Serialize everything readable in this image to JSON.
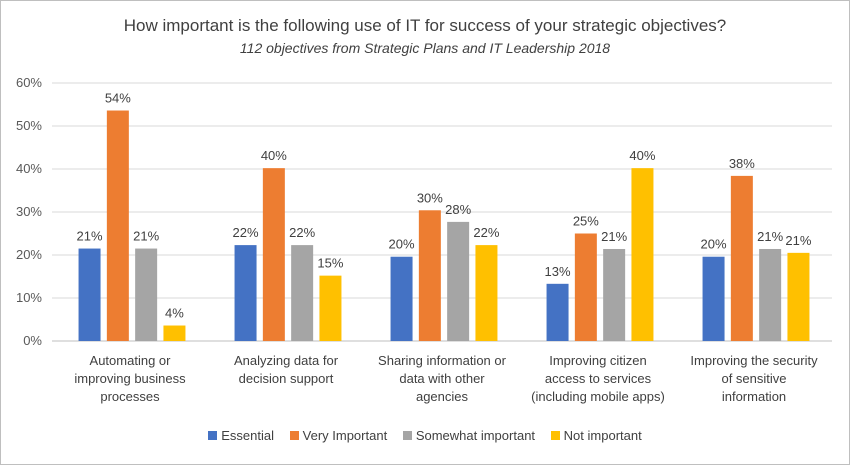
{
  "chart_data": {
    "type": "bar",
    "title": "How important is the following use of IT for success of your strategic objectives?",
    "subtitle": "112 objectives from Strategic Plans and IT Leadership 2018",
    "categories": [
      [
        "Automating or",
        "improving business",
        "processes"
      ],
      [
        "Analyzing data for",
        "decision support"
      ],
      [
        "Sharing information or",
        "data with other",
        "agencies"
      ],
      [
        "Improving citizen",
        "access to services",
        "(including mobile apps)"
      ],
      [
        "Improving the security",
        "of sensitive",
        "information"
      ]
    ],
    "series": [
      {
        "name": "Essential",
        "color": "#4472c4",
        "values": [
          21,
          22,
          20,
          13,
          20
        ],
        "labels": [
          "21%",
          "22%",
          "20%",
          "13%",
          "20%"
        ],
        "plot_values": [
          21.5,
          22.3,
          19.6,
          13.3,
          19.6
        ]
      },
      {
        "name": "Very Important",
        "color": "#ed7d31",
        "values": [
          54,
          40,
          30,
          25,
          38
        ],
        "labels": [
          "54%",
          "40%",
          "30%",
          "25%",
          "38%"
        ],
        "plot_values": [
          53.6,
          40.2,
          30.4,
          25.0,
          38.4
        ]
      },
      {
        "name": "Somewhat important",
        "color": "#a5a5a5",
        "values": [
          21,
          22,
          28,
          21,
          21
        ],
        "labels": [
          "21%",
          "22%",
          "28%",
          "21%",
          "21%"
        ],
        "plot_values": [
          21.5,
          22.3,
          27.7,
          21.4,
          21.4
        ]
      },
      {
        "name": "Not important",
        "color": "#ffc000",
        "values": [
          4,
          15,
          22,
          40,
          21
        ],
        "labels": [
          "4%",
          "15%",
          "22%",
          "40%",
          "21%"
        ],
        "plot_values": [
          3.6,
          15.2,
          22.3,
          40.2,
          20.5
        ]
      }
    ],
    "yticks": [
      "0%",
      "10%",
      "20%",
      "30%",
      "40%",
      "50%",
      "60%"
    ],
    "ylim": [
      0,
      60
    ],
    "ylabel": "",
    "xlabel": "",
    "grid": true,
    "legend_position": "bottom"
  }
}
